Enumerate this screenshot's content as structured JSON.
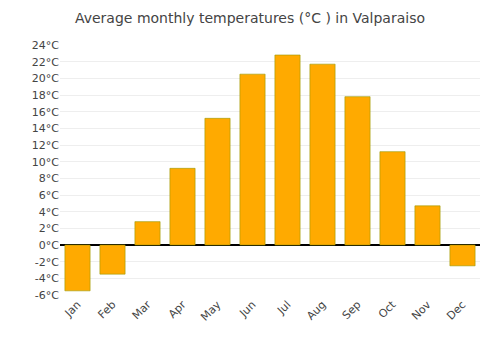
{
  "chart_data": {
    "type": "bar",
    "title": "Average monthly temperatures (°C ) in Valparaiso",
    "categories": [
      "Jan",
      "Feb",
      "Mar",
      "Apr",
      "May",
      "Jun",
      "Jul",
      "Aug",
      "Sep",
      "Oct",
      "Nov",
      "Dec"
    ],
    "values": [
      -5.5,
      -3.5,
      2.8,
      9.2,
      15.2,
      20.5,
      22.8,
      21.7,
      17.8,
      11.2,
      4.7,
      -2.5
    ],
    "color": "#FFAA00",
    "ylim": [
      -6,
      24
    ],
    "yticks": [
      {
        "value": -6,
        "label": "-6°C"
      },
      {
        "value": -4,
        "label": "-4°C"
      },
      {
        "value": -2,
        "label": "-2°C"
      },
      {
        "value": 0,
        "label": "0°C"
      },
      {
        "value": 2,
        "label": "2°C"
      },
      {
        "value": 4,
        "label": "4°C"
      },
      {
        "value": 6,
        "label": "6°C"
      },
      {
        "value": 8,
        "label": "8°C"
      },
      {
        "value": 10,
        "label": "10°C"
      },
      {
        "value": 12,
        "label": "12°C"
      },
      {
        "value": 14,
        "label": "14°C"
      },
      {
        "value": 16,
        "label": "16°C"
      },
      {
        "value": 18,
        "label": "18°C"
      },
      {
        "value": 20,
        "label": "20°C"
      },
      {
        "value": 22,
        "label": "22°C"
      },
      {
        "value": 24,
        "label": "24°C"
      }
    ],
    "grid": true
  }
}
